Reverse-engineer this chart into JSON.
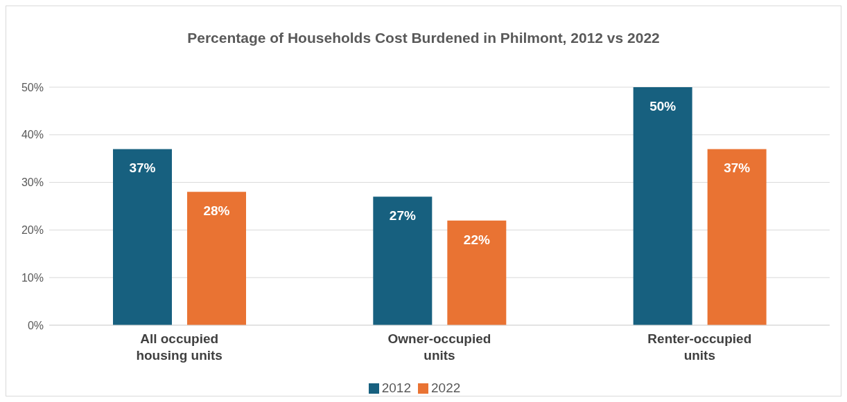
{
  "chart_data": {
    "type": "bar",
    "title": "Percentage of Households Cost Burdened in Philmont, 2012 vs 2022",
    "categories": [
      "All occupied housing units",
      "Owner-occupied units",
      "Renter-occupied units"
    ],
    "series": [
      {
        "name": "2012",
        "color": "#17607f",
        "values": [
          37,
          27,
          50
        ],
        "value_labels": [
          "37%",
          "27%",
          "50%"
        ]
      },
      {
        "name": "2022",
        "color": "#e97333",
        "values": [
          28,
          22,
          37
        ],
        "value_labels": [
          "28%",
          "22%",
          "37%"
        ]
      }
    ],
    "ylim": [
      0,
      50
    ],
    "yticks": [
      {
        "value": 0,
        "label": "0%"
      },
      {
        "value": 10,
        "label": "10%"
      },
      {
        "value": 20,
        "label": "20%"
      },
      {
        "value": 30,
        "label": "30%"
      },
      {
        "value": 40,
        "label": "40%"
      },
      {
        "value": 50,
        "label": "50%"
      }
    ],
    "grid": "y",
    "legend": "bottom"
  }
}
